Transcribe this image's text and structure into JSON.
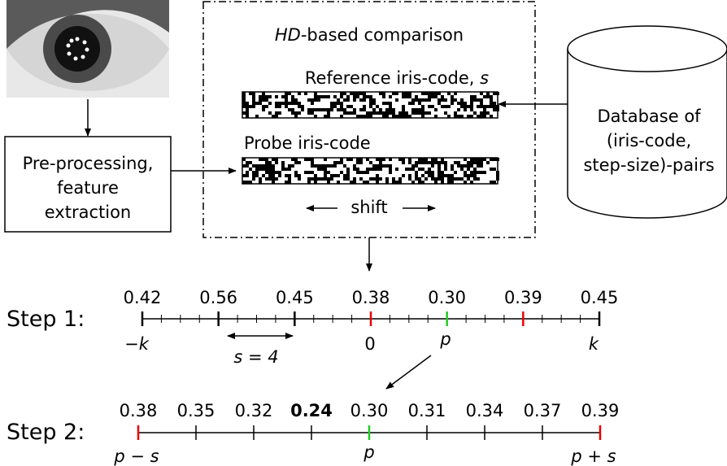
{
  "comparison": {
    "title_italic": "HD",
    "title_rest": "-based comparison",
    "reference_label": "Reference iris-code, ",
    "reference_var": "s",
    "probe_label": "Probe iris-code",
    "shift": "shift"
  },
  "preprocessing": [
    "Pre-processing,",
    "feature",
    "extraction"
  ],
  "database": [
    "Database of",
    "(iris-code,",
    "step-size)-pairs"
  ],
  "step1": {
    "label": "Step 1:",
    "scores": [
      "0.42",
      "0.56",
      "0.45",
      "0.38",
      "0.30",
      "0.39",
      "0.45"
    ],
    "below": {
      "minus_k": "−k",
      "s": "s = 4",
      "zero": "0",
      "p": "p",
      "k": "k"
    }
  },
  "step2": {
    "label": "Step 2:",
    "scores": [
      "0.38",
      "0.35",
      "0.32",
      "0.24",
      "0.30",
      "0.31",
      "0.34",
      "0.37",
      "0.39"
    ],
    "below": [
      "p − s",
      "p",
      "p + s"
    ]
  }
}
